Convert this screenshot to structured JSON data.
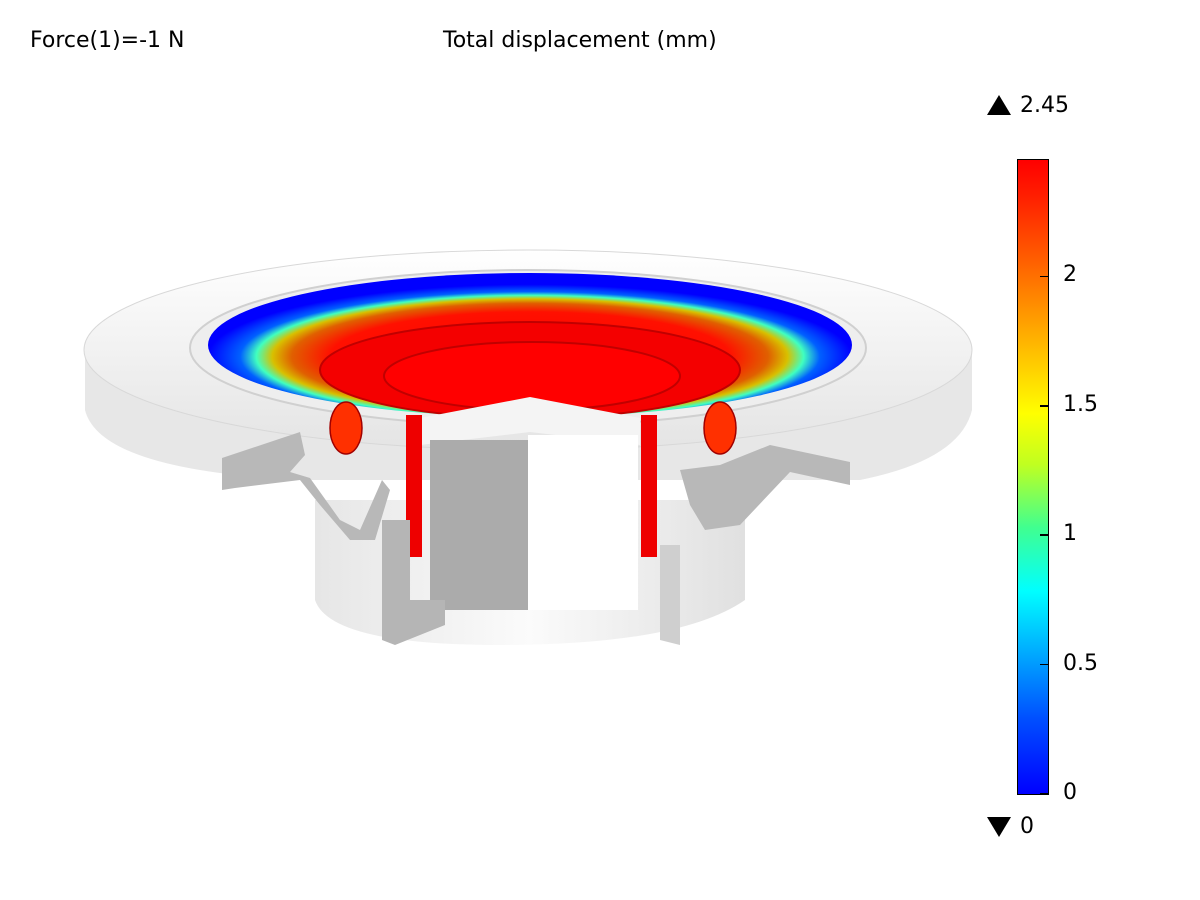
{
  "header": {
    "parameter_label": "Force(1)=-1 N",
    "title": "Total displacement (mm)"
  },
  "colorbar": {
    "max_label": "2.45",
    "min_label": "0",
    "range": [
      0,
      2.45
    ],
    "ticks": [
      {
        "value": 0,
        "label": "0"
      },
      {
        "value": 0.5,
        "label": "0.5"
      },
      {
        "value": 1,
        "label": "1"
      },
      {
        "value": 1.5,
        "label": "1.5"
      },
      {
        "value": 2,
        "label": "2"
      }
    ],
    "colormap": "rainbow",
    "colors": {
      "low": "#0000ff",
      "mid": "#ffff00",
      "high": "#ff0000"
    }
  }
}
